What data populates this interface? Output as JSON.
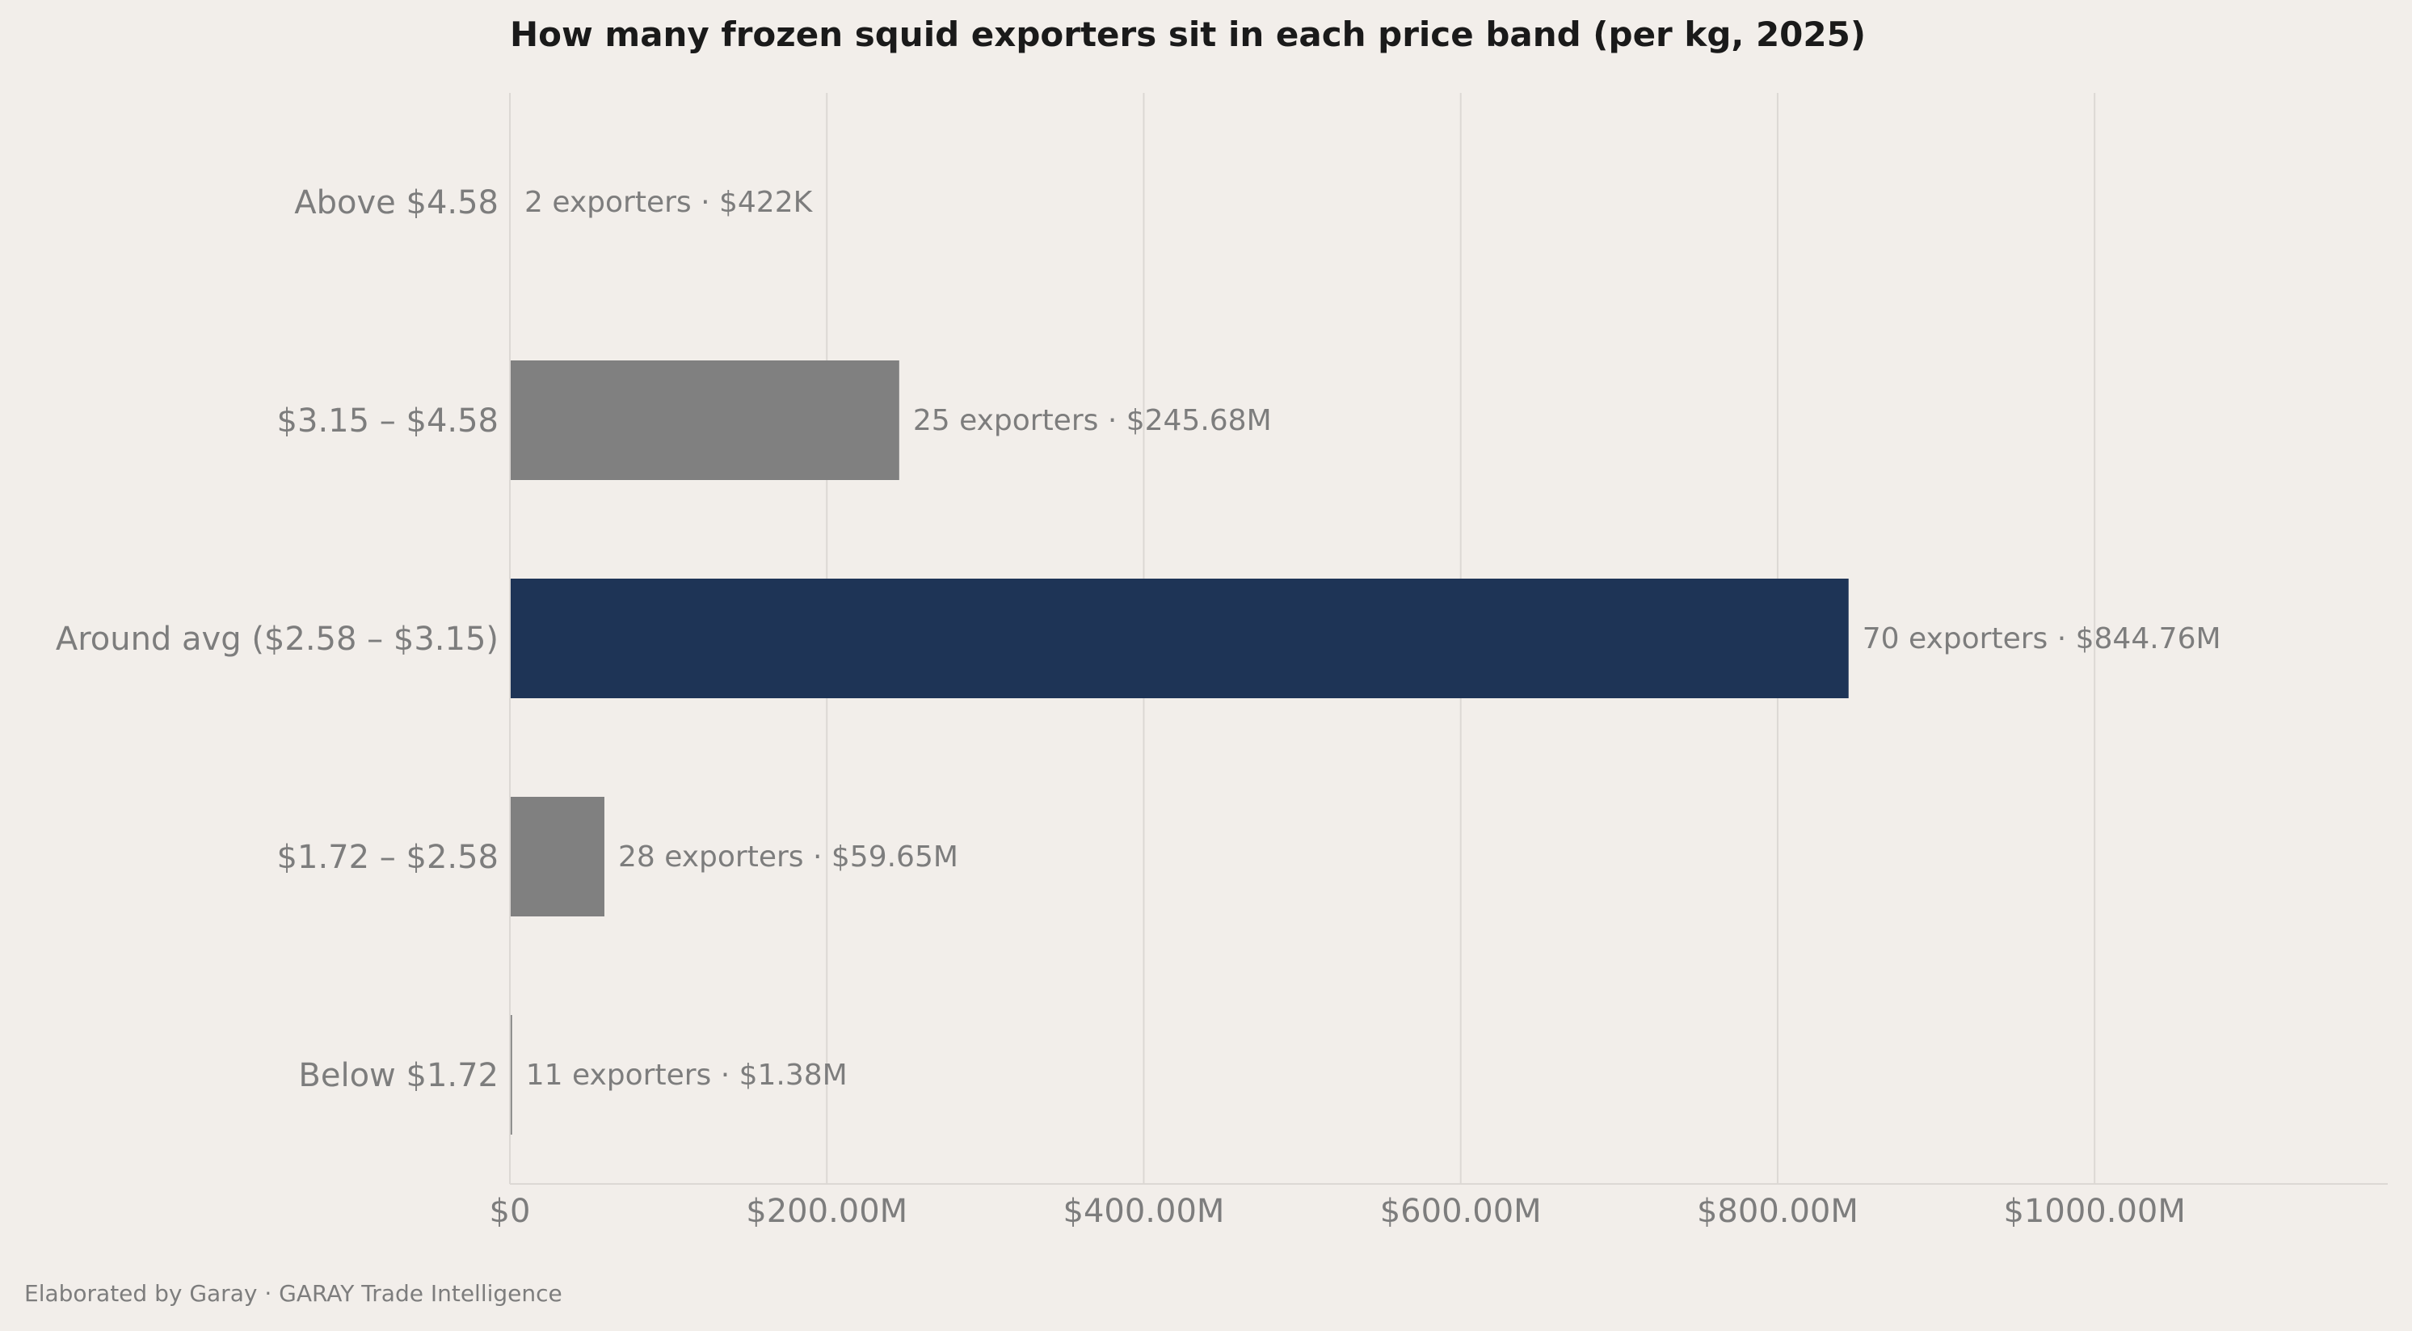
{
  "chart_data": {
    "type": "bar",
    "orientation": "horizontal",
    "title": "How many frozen squid exporters sit in each price band (per kg, 2025)",
    "xlabel": "",
    "ylabel": "",
    "categories": [
      "Above $4.58",
      "$3.15 – $4.58",
      "Around avg ($2.58 – $3.15)",
      "$1.72 – $2.58",
      "Below $1.72"
    ],
    "values": [
      0.422,
      245.68,
      844.76,
      59.65,
      1.38
    ],
    "value_unit": "$M",
    "exporters": [
      2,
      25,
      70,
      28,
      11
    ],
    "data_labels": [
      "2 exporters  ·  $422K",
      "25 exporters  ·  $245.68M",
      "70 exporters  ·  $844.76M",
      "28 exporters  ·  $59.65M",
      "11 exporters  ·  $1.38M"
    ],
    "highlight_index": 2,
    "xlim": [
      0,
      1185
    ],
    "xticks": [
      0,
      200,
      400,
      600,
      800,
      1000
    ],
    "xtick_labels": [
      "$0",
      "$200.00M",
      "$400.00M",
      "$600.00M",
      "$800.00M",
      "$1000.00M"
    ],
    "grid": "vertical",
    "colors": {
      "bar": "#808080",
      "highlight": "#1e3456",
      "background": "#f2eeea",
      "grid": "#dcd8d4",
      "text": "#7d7d7d",
      "title": "#1a1a1a"
    }
  },
  "footer": {
    "credit": "Elaborated by Garay  ·  GARAY Trade Intelligence"
  }
}
